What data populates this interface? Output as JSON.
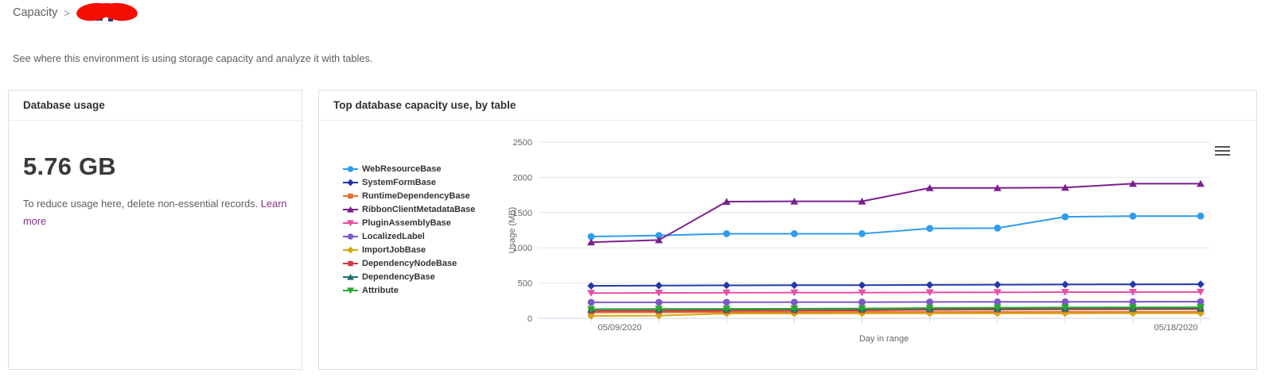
{
  "breadcrumb": {
    "parent": "Capacity",
    "separator": ">",
    "current": "(redacted)",
    "redacted": true,
    "redaction_color": "#f50d00"
  },
  "subtitle": "See where this environment is using storage capacity and analyze it with tables.",
  "database_usage_card": {
    "title": "Database usage",
    "usage_value": "5.76 GB",
    "description": "To reduce usage here, delete non-essential records.",
    "link_label": "Learn more",
    "link_color": "#8b2f8f"
  },
  "chart_card": {
    "title": "Top database capacity use, by table",
    "menu_icon": "hamburger-icon"
  },
  "chart_data": {
    "type": "line",
    "title": "",
    "xlabel": "Day in range",
    "ylabel": "Usage (MB)",
    "ylim": [
      0,
      2500
    ],
    "yticks": [
      0,
      500,
      1000,
      1500,
      2000,
      2500
    ],
    "num_points": 10,
    "x_first_label": "05/09/2020",
    "x_last_label": "05/18/2020",
    "grid": true,
    "legend_position": "left",
    "series": [
      {
        "name": "WebResourceBase",
        "color": "#2f9ced",
        "marker": "circle",
        "values": [
          1160,
          1175,
          1200,
          1200,
          1200,
          1275,
          1280,
          1440,
          1450,
          1450
        ]
      },
      {
        "name": "SystemFormBase",
        "color": "#2338a8",
        "marker": "diamond",
        "values": [
          460,
          465,
          468,
          470,
          470,
          474,
          477,
          480,
          482,
          483
        ]
      },
      {
        "name": "RuntimeDependencyBase",
        "color": "#e8702d",
        "marker": "square",
        "values": [
          82,
          84,
          86,
          87,
          88,
          89,
          90,
          91,
          92,
          92
        ]
      },
      {
        "name": "RibbonClientMetadataBase",
        "color": "#7b1f8f",
        "marker": "triangle",
        "values": [
          1080,
          1110,
          1655,
          1660,
          1660,
          1850,
          1850,
          1855,
          1910,
          1910
        ]
      },
      {
        "name": "PluginAssemblyBase",
        "color": "#e94fa7",
        "marker": "triangle-down",
        "values": [
          358,
          360,
          363,
          364,
          365,
          367,
          369,
          371,
          372,
          373
        ]
      },
      {
        "name": "LocalizedLabel",
        "color": "#7e57c7",
        "marker": "circle",
        "values": [
          227,
          227,
          228,
          229,
          230,
          232,
          233,
          234,
          235,
          236
        ]
      },
      {
        "name": "ImportJobBase",
        "color": "#d6a712",
        "marker": "diamond",
        "values": [
          35,
          38,
          68,
          69,
          70,
          70,
          71,
          71,
          72,
          72
        ]
      },
      {
        "name": "DependencyNodeBase",
        "color": "#cf3942",
        "marker": "square",
        "values": [
          104,
          106,
          108,
          110,
          113,
          120,
          123,
          126,
          128,
          129
        ]
      },
      {
        "name": "DependencyBase",
        "color": "#1f6f6d",
        "marker": "triangle",
        "values": [
          126,
          128,
          130,
          132,
          134,
          139,
          141,
          143,
          144,
          145
        ]
      },
      {
        "name": "Attribute",
        "color": "#28a52e",
        "marker": "triangle-down",
        "values": [
          130,
          132,
          134,
          136,
          139,
          146,
          150,
          153,
          155,
          156
        ]
      }
    ]
  }
}
